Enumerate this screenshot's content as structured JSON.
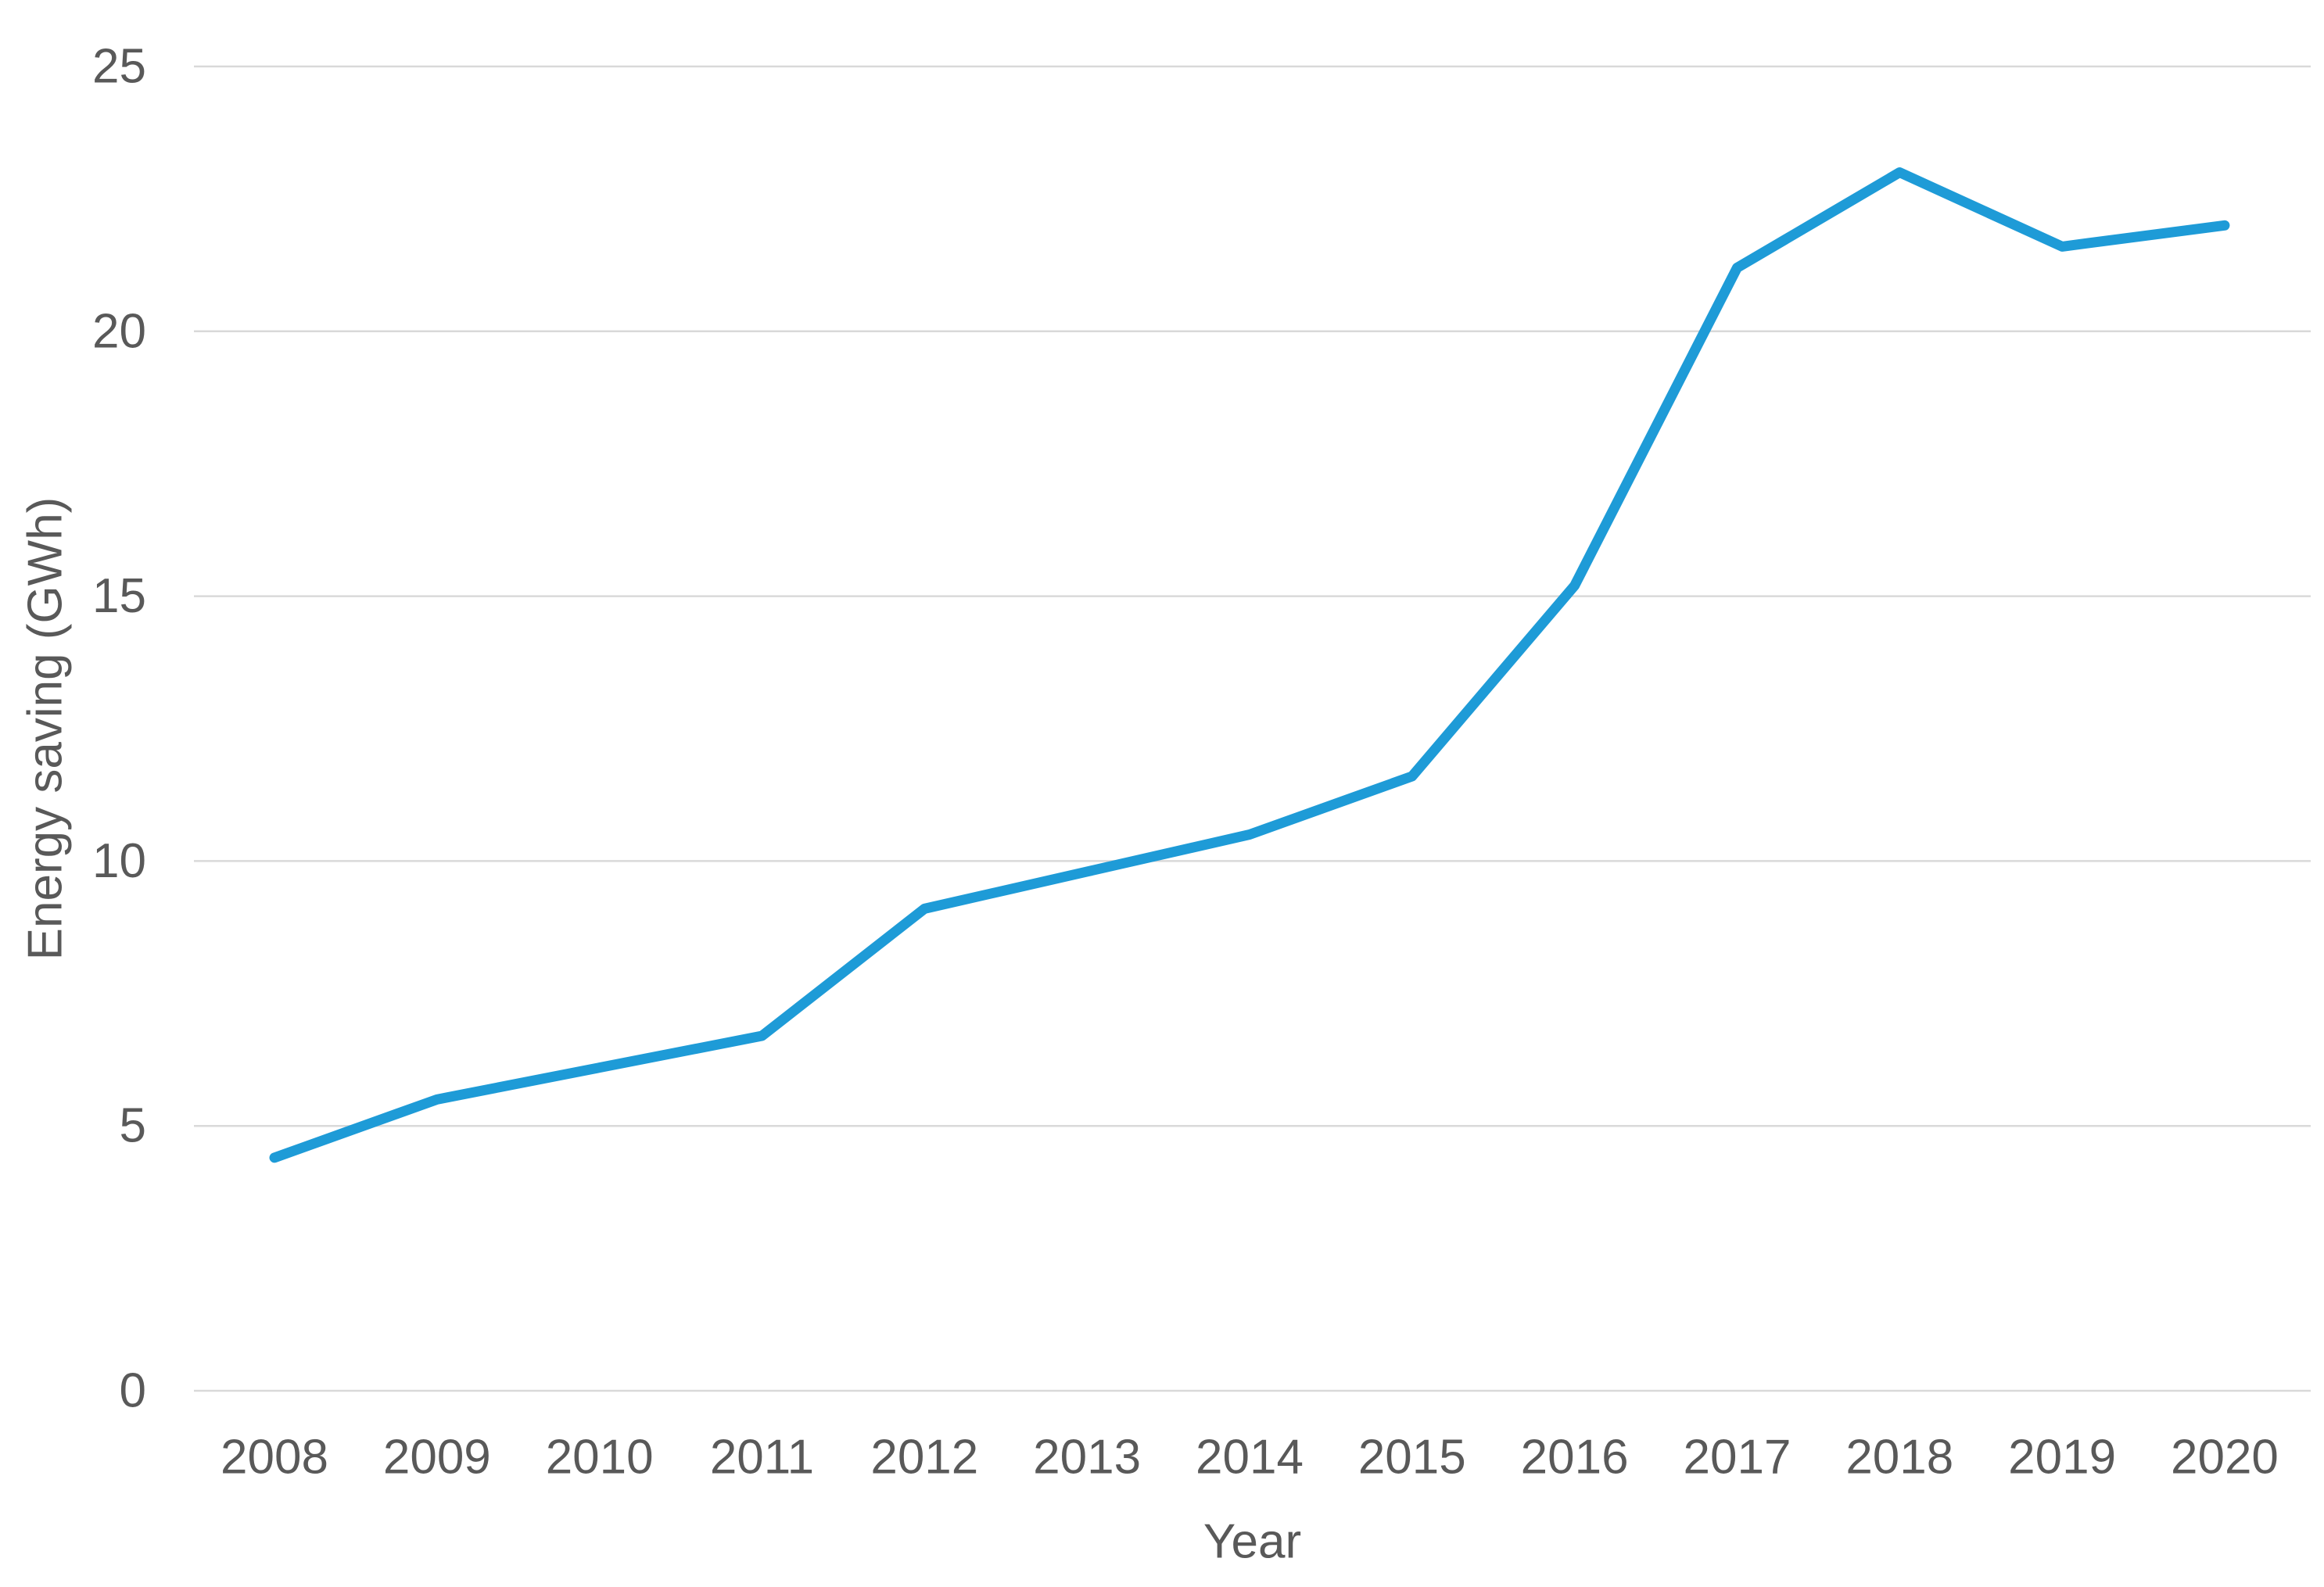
{
  "chart_data": {
    "type": "line",
    "title": "",
    "xlabel": "Year",
    "ylabel": "Energy saving (GWh)",
    "categories": [
      "2008",
      "2009",
      "2010",
      "2011",
      "2012",
      "2013",
      "2014",
      "2015",
      "2016",
      "2017",
      "2018",
      "2019",
      "2020"
    ],
    "series": [
      {
        "name": "Energy saving",
        "values": [
          4.4,
          5.5,
          6.1,
          6.7,
          9.1,
          9.8,
          10.5,
          11.6,
          15.2,
          21.2,
          23.0,
          21.6,
          22.0
        ]
      }
    ],
    "ylim": [
      0,
      25
    ],
    "yticks": [
      0,
      5,
      10,
      15,
      20,
      25
    ],
    "grid": "horizontal",
    "legend": "none",
    "line_color": "#1E9BD7",
    "grid_color": "#D9D9D9",
    "label_color": "#595959"
  }
}
